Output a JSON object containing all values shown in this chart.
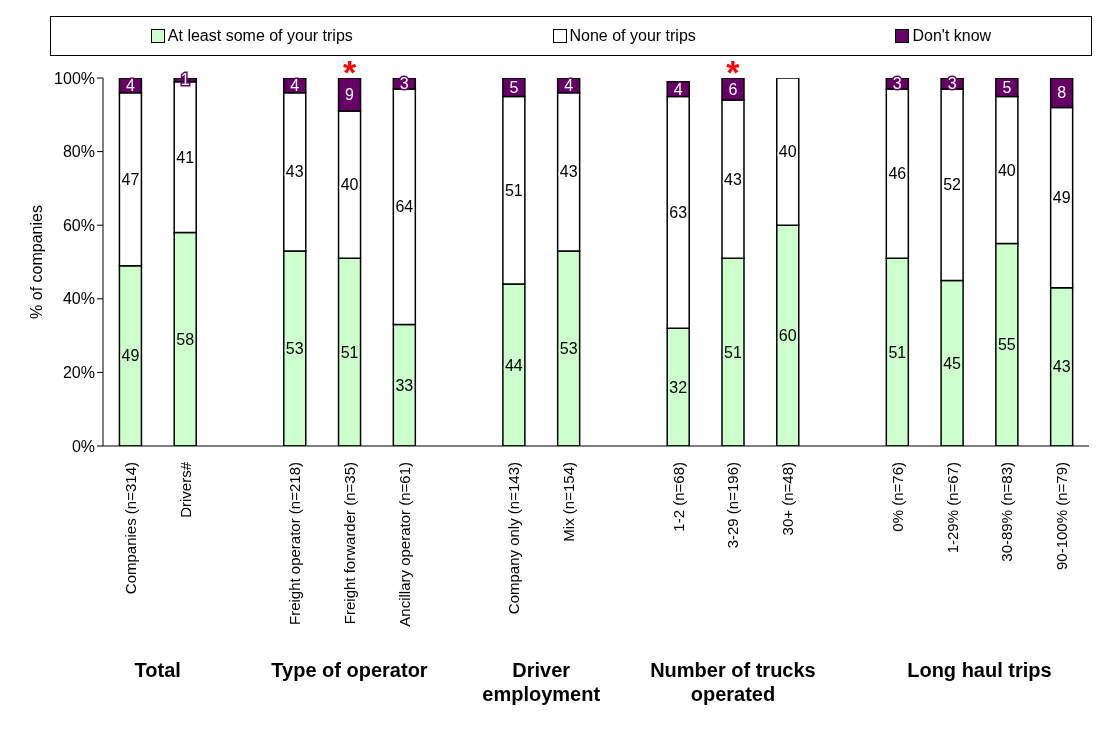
{
  "chart_data": {
    "type": "bar",
    "stacked": true,
    "ylabel": "% of companies",
    "categories": [
      "Companies (n=314)",
      "Drivers#",
      null,
      "Freight operator (n=218)",
      "Freight forwarder (n=35)",
      "Ancillary operator (n=61)",
      null,
      "Company only (n=143)",
      "Mix (n=154)",
      null,
      "1-2 (n=68)",
      "3-29 (n=196)",
      "30+ (n=48)",
      null,
      "0% (n=76)",
      "1-29% (n=67)",
      "30-89% (n=83)",
      "90-100% (n=79)"
    ],
    "series": [
      {
        "name": "At least some of your trips",
        "color": "#ccffcc",
        "values": [
          49,
          58,
          null,
          53,
          51,
          33,
          null,
          44,
          53,
          null,
          32,
          51,
          60,
          null,
          51,
          45,
          55,
          43
        ]
      },
      {
        "name": "None of your trips",
        "color": "#ffffff",
        "values": [
          47,
          41,
          null,
          43,
          40,
          64,
          null,
          51,
          43,
          null,
          63,
          43,
          40,
          null,
          46,
          52,
          40,
          49
        ]
      },
      {
        "name": "Don't know",
        "color": "#660066",
        "values": [
          4,
          1,
          null,
          4,
          9,
          3,
          null,
          5,
          4,
          null,
          4,
          6,
          0,
          null,
          3,
          3,
          5,
          8
        ],
        "value_labels": [
          "4",
          "1",
          null,
          "4",
          "9",
          "3",
          null,
          "5",
          "4",
          null,
          "4",
          "6",
          null,
          null,
          "3",
          "3",
          "5",
          "8"
        ]
      }
    ],
    "ylim": [
      0,
      100
    ],
    "yticks": [
      {
        "value": 0,
        "label": "0%"
      },
      {
        "value": 20,
        "label": "20%"
      },
      {
        "value": 40,
        "label": "40%"
      },
      {
        "value": 60,
        "label": "60%"
      },
      {
        "value": 80,
        "label": "80%"
      },
      {
        "value": 100,
        "label": "100%"
      }
    ],
    "data_labels": true,
    "legend": "top",
    "grid": false,
    "annotations": [
      {
        "text": "*",
        "x": "Freight forwarder (n=35)",
        "y": 100
      },
      {
        "text": "*",
        "x": "3-29 (n=196)",
        "y": 100
      },
      "Total",
      "Type of operator",
      "Driver employment",
      "Number of trucks operated",
      "Long haul trips"
    ]
  }
}
